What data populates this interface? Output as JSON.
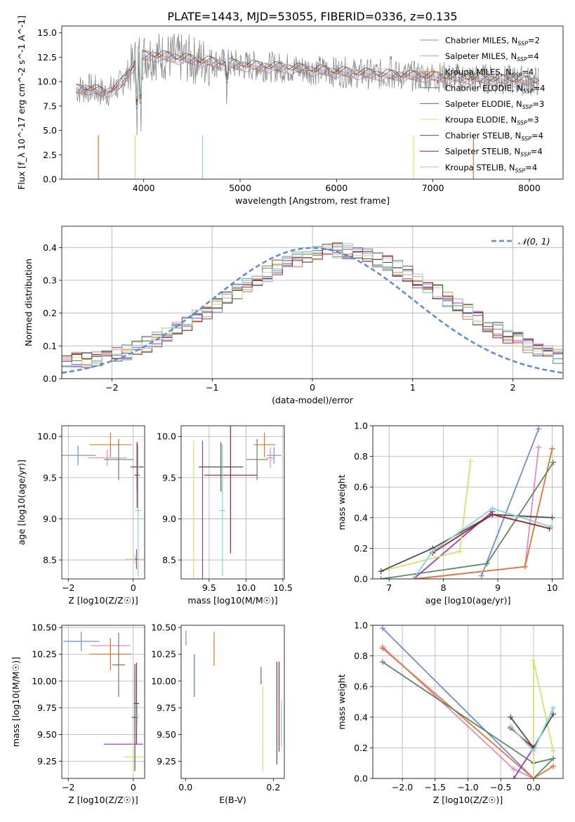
{
  "figure_title": "PLATE=1443, MJD=53055, FIBERID=0336, z=0.135",
  "colors": {
    "Chabrier MILES": "#6a8fd8",
    "Salpeter MILES": "#e58bbf",
    "Kroupa MILES": "#e8742f",
    "Chabrier ELODIE": "#5a8a60",
    "Salpeter ELODIE": "#9b3cc4",
    "Kroupa ELODIE": "#d4e26c",
    "Chabrier STELIB": "#505050",
    "Salpeter STELIB": "#a52020",
    "Kroupa STELIB": "#7fd3dc"
  },
  "chart_data": [
    {
      "type": "line",
      "id": "spectrum",
      "xlabel": "wavelength [Angstrom, rest frame]",
      "ylabel": "Flux [f_λ 10^-17 erg cm^-2 s^-1 A^-1]",
      "xlim": [
        3150,
        8350
      ],
      "ylim": [
        0,
        15.7
      ],
      "xticks": [
        4000,
        5000,
        6000,
        7000,
        8000
      ],
      "yticks": [
        0.0,
        2.5,
        5.0,
        7.5,
        10.0,
        12.5,
        15.0
      ],
      "legend_position": "right",
      "series": [
        {
          "name": "Chabrier MILES, N_SSP=2",
          "model": "Chabrier MILES"
        },
        {
          "name": "Salpeter MILES, N_SSP=4",
          "model": "Salpeter MILES"
        },
        {
          "name": "Kroupa MILES, N_SSP=4",
          "model": "Kroupa MILES"
        },
        {
          "name": "Chabrier ELODIE, N_SSP=4",
          "model": "Chabrier ELODIE"
        },
        {
          "name": "Salpeter ELODIE, N_SSP=3",
          "model": "Salpeter ELODIE"
        },
        {
          "name": "Kroupa ELODIE, N_SSP=3",
          "model": "Kroupa ELODIE"
        },
        {
          "name": "Chabrier STELIB, N_SSP=4",
          "model": "Chabrier STELIB"
        },
        {
          "name": "Salpeter STELIB, N_SSP=4",
          "model": "Salpeter STELIB"
        },
        {
          "name": "Kroupa STELIB, N_SSP=4",
          "model": "Kroupa STELIB"
        }
      ],
      "continuum": {
        "x": [
          3300,
          3450,
          3600,
          3750,
          3850,
          3950,
          4100,
          4300,
          4600,
          5000,
          5500,
          6000,
          6500,
          7000,
          7500,
          8100
        ],
        "y": [
          9.2,
          9.3,
          8.8,
          9.6,
          11.0,
          12.6,
          12.7,
          12.5,
          12.1,
          11.7,
          11.4,
          11.0,
          10.7,
          10.5,
          10.3,
          10.0
        ]
      }
    },
    {
      "type": "line",
      "id": "residuals",
      "xlabel": "(data-model)/error",
      "ylabel": "Normed distribution",
      "xlim": [
        -2.5,
        2.5
      ],
      "ylim": [
        0,
        0.465
      ],
      "xticks": [
        -2,
        -1,
        0,
        1,
        2
      ],
      "yticks": [
        0.0,
        0.1,
        0.2,
        0.3,
        0.4
      ],
      "grid": true,
      "legend_position": "top-right",
      "reference_curve": {
        "name": "𝒩(0, 1)",
        "mean": 0,
        "sigma": 1,
        "color": "#5b8ad8"
      },
      "bin_width": 0.1,
      "bins_start": -2.5,
      "histogram_base": [
        0.045,
        0.058,
        0.056,
        0.06,
        0.064,
        0.073,
        0.08,
        0.092,
        0.104,
        0.119,
        0.132,
        0.15,
        0.166,
        0.187,
        0.206,
        0.227,
        0.244,
        0.266,
        0.287,
        0.303,
        0.32,
        0.338,
        0.35,
        0.364,
        0.372,
        0.384,
        0.39,
        0.393,
        0.39,
        0.384,
        0.375,
        0.362,
        0.352,
        0.336,
        0.32,
        0.302,
        0.287,
        0.267,
        0.244,
        0.227,
        0.206,
        0.185,
        0.166,
        0.15,
        0.132,
        0.119,
        0.104,
        0.092,
        0.08,
        0.07
      ]
    },
    {
      "type": "scatter",
      "id": "metallicity-age",
      "xlabel": "Z [log10(Z/Z☉)]",
      "ylabel": "age  [log10(age/yr)]",
      "xlim": [
        -2.2,
        0.35
      ],
      "ylim": [
        8.27,
        10.13
      ],
      "xticks": [
        -2,
        0
      ],
      "yticks": [
        8.5,
        9.0,
        9.5,
        10.0
      ],
      "grid": true,
      "points": [
        {
          "model": "Chabrier MILES",
          "x": -1.7,
          "xerr": 0.55,
          "y": 9.77,
          "yerr": 0.12
        },
        {
          "model": "Salpeter MILES",
          "x": -0.8,
          "xerr": 0.6,
          "y": 9.74,
          "yerr": 0.1
        },
        {
          "model": "Kroupa MILES",
          "x": -0.7,
          "xerr": 0.65,
          "y": 9.9,
          "yerr": 0.15
        },
        {
          "model": "Chabrier ELODIE",
          "x": -0.45,
          "xerr": 0.45,
          "y": 9.72,
          "yerr": 0.25
        },
        {
          "model": "Kroupa ELODIE",
          "x": 0.05,
          "xerr": 0.3,
          "y": 8.51,
          "yerr": 0.06
        },
        {
          "model": "Salpeter ELODIE",
          "x": 0.1,
          "xerr": 0.05,
          "y": 8.51,
          "yerr": 0.12
        },
        {
          "model": "Chabrier STELIB",
          "x": 0.12,
          "xerr": 0.2,
          "y": 9.63,
          "yerr": 0.3
        },
        {
          "model": "Salpeter STELIB",
          "x": 0.12,
          "xerr": 0.08,
          "y": 9.53,
          "yerr": 0.4
        },
        {
          "model": "Kroupa STELIB",
          "x": 0.15,
          "xerr": 0.1,
          "y": 9.1,
          "yerr": 0.8
        }
      ]
    },
    {
      "type": "scatter",
      "id": "mass-age",
      "xlabel": "mass [log10(M/M☉)]",
      "ylabel": "",
      "xlim": [
        9.12,
        10.52
      ],
      "ylim": [
        8.27,
        10.13
      ],
      "xticks": [
        9.5,
        10.0,
        10.5
      ],
      "yticks": [
        8.5,
        9.0,
        9.5,
        10.0
      ],
      "grid": true,
      "points": [
        {
          "model": "Chabrier MILES",
          "x": 10.38,
          "xerr": 0.1,
          "y": 9.77,
          "yerr": 0.1
        },
        {
          "model": "Salpeter MILES",
          "x": 10.33,
          "xerr": 0.06,
          "y": 9.74,
          "yerr": 0.12
        },
        {
          "model": "Kroupa MILES",
          "x": 10.25,
          "xerr": 0.15,
          "y": 9.9,
          "yerr": 0.15
        },
        {
          "model": "Chabrier ELODIE",
          "x": 10.15,
          "xerr": 0.15,
          "y": 9.72,
          "yerr": 0.25
        },
        {
          "model": "Kroupa ELODIE",
          "x": 9.29,
          "xerr": 0.0,
          "y": 9.0,
          "yerr": 0.95
        },
        {
          "model": "Salpeter ELODIE",
          "x": 9.41,
          "xerr": 0.0,
          "y": 9.0,
          "yerr": 0.95
        },
        {
          "model": "Chabrier STELIB",
          "x": 9.66,
          "xerr": 0.3,
          "y": 9.63,
          "yerr": 0.3
        },
        {
          "model": "Salpeter STELIB",
          "x": 9.79,
          "xerr": 0.36,
          "y": 9.53,
          "yerr": 0.95
        },
        {
          "model": "Kroupa STELIB",
          "x": 9.68,
          "xerr": 0.04,
          "y": 9.1,
          "yerr": 0.8
        }
      ]
    },
    {
      "type": "line",
      "id": "age-massweight",
      "xlabel": "age  [log10(age/yr)]",
      "ylabel": "mass weight",
      "xlim": [
        6.7,
        10.2
      ],
      "ylim": [
        0,
        1
      ],
      "xticks": [
        7,
        8,
        9,
        10
      ],
      "yticks": [
        0.0,
        0.2,
        0.4,
        0.6,
        0.8,
        1.0
      ],
      "grid": true,
      "series": [
        {
          "model": "Chabrier MILES",
          "x": [
            8.7,
            9.75
          ],
          "y": [
            0.02,
            0.98
          ]
        },
        {
          "model": "Salpeter MILES",
          "x": [
            7.45,
            9.5,
            9.75
          ],
          "y": [
            0.0,
            0.08,
            0.86
          ]
        },
        {
          "model": "Kroupa MILES",
          "x": [
            7.5,
            9.5,
            10.0
          ],
          "y": [
            0.0,
            0.08,
            0.85
          ]
        },
        {
          "model": "Chabrier ELODIE",
          "x": [
            6.85,
            8.8,
            10.02
          ],
          "y": [
            0.0,
            0.1,
            0.76
          ]
        },
        {
          "model": "Salpeter ELODIE",
          "x": [
            7.45,
            8.9
          ],
          "y": [
            0.0,
            0.44
          ]
        },
        {
          "model": "Kroupa ELODIE",
          "x": [
            6.85,
            8.3,
            8.5
          ],
          "y": [
            0.05,
            0.18,
            0.77
          ]
        },
        {
          "model": "Chabrier STELIB",
          "x": [
            6.85,
            7.8,
            8.9,
            10.0
          ],
          "y": [
            0.05,
            0.2,
            0.42,
            0.4
          ]
        },
        {
          "model": "Salpeter STELIB",
          "x": [
            7.8,
            8.9,
            9.95
          ],
          "y": [
            0.17,
            0.42,
            0.33
          ]
        },
        {
          "model": "Kroupa STELIB",
          "x": [
            7.45,
            7.8,
            8.9,
            9.98
          ],
          "y": [
            0.0,
            0.18,
            0.46,
            0.34
          ]
        }
      ]
    },
    {
      "type": "scatter",
      "id": "metallicity-mass",
      "xlabel": "Z [log10(Z/Z☉)]",
      "ylabel": "mass [log10(M/M☉)]",
      "xlim": [
        -2.2,
        0.35
      ],
      "ylim": [
        9.09,
        10.52
      ],
      "xticks": [
        -2,
        0
      ],
      "yticks": [
        9.25,
        9.5,
        9.75,
        10.0,
        10.25,
        10.5
      ],
      "grid": true,
      "points": [
        {
          "model": "Chabrier MILES",
          "x": -1.6,
          "xerr": 0.55,
          "y": 10.37,
          "yerr": 0.09
        },
        {
          "model": "Salpeter MILES",
          "x": -0.7,
          "xerr": 0.6,
          "y": 10.33,
          "yerr": 0.07
        },
        {
          "model": "Kroupa MILES",
          "x": -0.7,
          "xerr": 0.65,
          "y": 10.25,
          "yerr": 0.15
        },
        {
          "model": "Chabrier ELODIE",
          "x": -0.45,
          "xerr": 0.2,
          "y": 10.15,
          "yerr": 0.3
        },
        {
          "model": "Salpeter ELODIE",
          "x": -0.3,
          "xerr": 0.6,
          "y": 9.41,
          "yerr": 0.0
        },
        {
          "model": "Kroupa ELODIE",
          "x": 0.0,
          "xerr": 0.3,
          "y": 9.29,
          "yerr": 0.15
        },
        {
          "model": "Chabrier STELIB",
          "x": 0.05,
          "xerr": 0.1,
          "y": 9.66,
          "yerr": 0.5
        },
        {
          "model": "Salpeter STELIB",
          "x": 0.1,
          "xerr": 0.08,
          "y": 9.79,
          "yerr": 0.38
        },
        {
          "model": "Kroupa STELIB",
          "x": 0.12,
          "xerr": 0.05,
          "y": 9.68,
          "yerr": 0.1
        }
      ]
    },
    {
      "type": "scatter",
      "id": "extinction-mass",
      "xlabel": "E(B-V)",
      "ylabel": "",
      "xlim": [
        -0.01,
        0.225
      ],
      "ylim": [
        9.09,
        10.52
      ],
      "xticks": [
        0.0,
        0.2
      ],
      "yticks": [
        9.25,
        9.5,
        9.75,
        10.0,
        10.25,
        10.5
      ],
      "grid": false,
      "points": [
        {
          "model": "Chabrier MILES",
          "x": 0.001,
          "y": 10.4,
          "yerr": 0.07
        },
        {
          "model": "Chabrier ELODIE",
          "x": 0.02,
          "y": 10.05,
          "yerr": 0.2
        },
        {
          "model": "Kroupa MILES",
          "x": 0.065,
          "y": 10.3,
          "yerr": 0.16
        },
        {
          "model": "Salpeter ELODIE",
          "x": 0.172,
          "y": 10.05,
          "yerr": 0.08
        },
        {
          "model": "Kroupa ELODIE",
          "x": 0.176,
          "y": 9.55,
          "yerr": 0.4
        },
        {
          "model": "Chabrier STELIB",
          "x": 0.208,
          "y": 9.7,
          "yerr": 0.48
        },
        {
          "model": "Salpeter STELIB",
          "x": 0.213,
          "y": 9.76,
          "yerr": 0.42
        },
        {
          "model": "Kroupa STELIB",
          "x": 0.218,
          "y": 9.6,
          "yerr": 0.22
        }
      ]
    },
    {
      "type": "line",
      "id": "metallicity-massweight",
      "xlabel": "Z [log10(Z/Z☉)]",
      "ylabel": "mass weight",
      "xlim": [
        -2.45,
        0.45
      ],
      "ylim": [
        0,
        1
      ],
      "xticks": [
        -2.0,
        -1.5,
        -1.0,
        -0.5,
        0.0
      ],
      "yticks": [
        0.0,
        0.2,
        0.4,
        0.6,
        0.8,
        1.0
      ],
      "grid": true,
      "series": [
        {
          "model": "Chabrier MILES",
          "x": [
            -2.3,
            0.0
          ],
          "y": [
            0.98,
            0.0
          ]
        },
        {
          "model": "Salpeter MILES",
          "x": [
            -2.3,
            -0.3,
            0.0
          ],
          "y": [
            0.86,
            0.06,
            0.0
          ]
        },
        {
          "model": "Kroupa MILES",
          "x": [
            -2.3,
            0.0,
            0.3
          ],
          "y": [
            0.85,
            0.0,
            0.08
          ]
        },
        {
          "model": "Chabrier ELODIE",
          "x": [
            -2.3,
            0.0,
            0.3,
            0.0
          ],
          "y": [
            0.76,
            0.1,
            0.13,
            0.0
          ]
        },
        {
          "model": "Salpeter ELODIE",
          "x": [
            -0.3,
            0.0
          ],
          "y": [
            0.0,
            0.2
          ]
        },
        {
          "model": "Kroupa ELODIE",
          "x": [
            0.0,
            0.0,
            0.3
          ],
          "y": [
            0.0,
            0.77,
            0.18
          ]
        },
        {
          "model": "Chabrier STELIB",
          "x": [
            -0.35,
            0.0,
            0.3
          ],
          "y": [
            0.4,
            0.2,
            0.42
          ]
        },
        {
          "model": "Salpeter STELIB",
          "x": [
            -0.35,
            0.0
          ],
          "y": [
            0.33,
            0.2
          ]
        },
        {
          "model": "Kroupa STELIB",
          "x": [
            -0.35,
            0.0,
            0.3
          ],
          "y": [
            0.34,
            0.18,
            0.46
          ]
        }
      ]
    }
  ]
}
